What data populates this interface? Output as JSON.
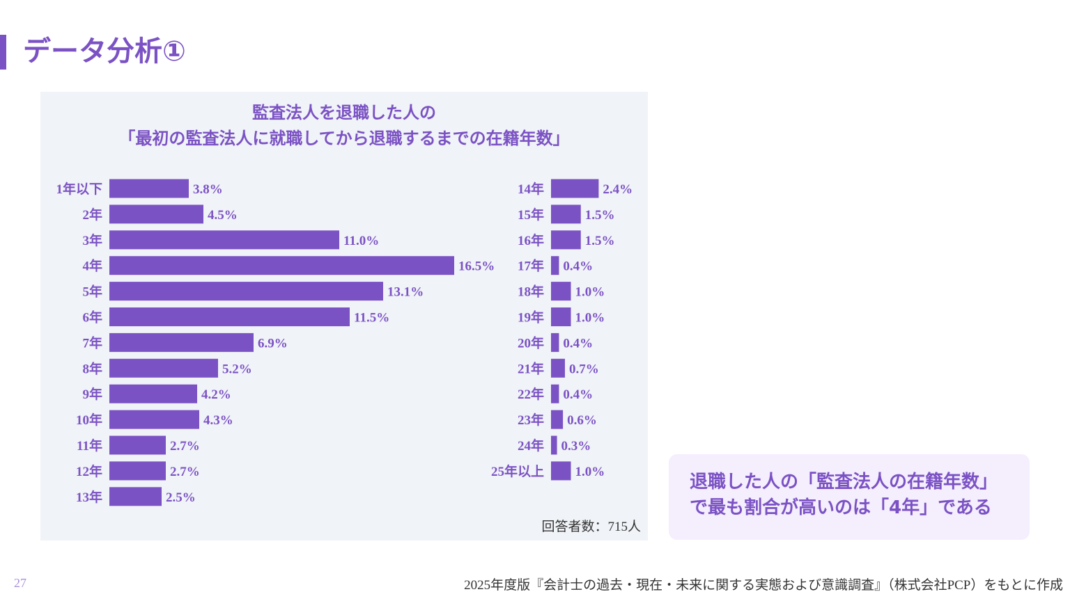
{
  "page": {
    "title": "データ分析①",
    "page_number": "27",
    "source": "2025年度版『会計士の過去・現在・未来に関する実態および意識調査』（株式会社PCP）をもとに作成"
  },
  "callout": {
    "line1": "退職した人の「監査法人の在籍年数」",
    "line2": "で最も割合が高いのは「4年」である"
  },
  "colors": {
    "accent": "#7b52c4",
    "panel_bg": "#f0f3f7",
    "callout_bg": "#f4eefd"
  },
  "chart_data": {
    "type": "bar",
    "orientation": "horizontal",
    "title": [
      "監査法人を退職した人の",
      "「最初の監査法人に就職してから退職するまでの在籍年数」"
    ],
    "note": "回答者数：715人",
    "unit": "%",
    "categories": [
      "1年以下",
      "2年",
      "3年",
      "4年",
      "5年",
      "6年",
      "7年",
      "8年",
      "9年",
      "10年",
      "11年",
      "12年",
      "13年",
      "14年",
      "15年",
      "16年",
      "17年",
      "18年",
      "19年",
      "20年",
      "21年",
      "22年",
      "23年",
      "24年",
      "25年以上"
    ],
    "values": [
      3.8,
      4.5,
      11.0,
      16.5,
      13.1,
      11.5,
      6.9,
      5.2,
      4.2,
      4.3,
      2.7,
      2.7,
      2.5,
      2.4,
      1.5,
      1.5,
      0.4,
      1.0,
      1.0,
      0.4,
      0.7,
      0.4,
      0.6,
      0.3,
      1.0
    ],
    "labels": [
      "3.8%",
      "4.5%",
      "11.0%",
      "16.5%",
      "13.1%",
      "11.5%",
      "6.9%",
      "5.2%",
      "4.2%",
      "4.3%",
      "2.7%",
      "2.7%",
      "2.5%",
      "2.4%",
      "1.5%",
      "1.5%",
      "0.4%",
      "1.0%",
      "1.0%",
      "0.4%",
      "0.7%",
      "0.4%",
      "0.6%",
      "0.3%",
      "1.0%"
    ],
    "grid": false,
    "legend": "none"
  }
}
